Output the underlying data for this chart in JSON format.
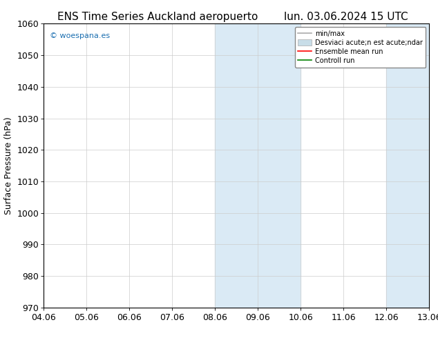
{
  "title_left": "ENS Time Series Auckland aeropuerto",
  "title_right": "lun. 03.06.2024 15 UTC",
  "xlabel_ticks": [
    "04.06",
    "05.06",
    "06.06",
    "07.06",
    "08.06",
    "09.06",
    "10.06",
    "11.06",
    "12.06",
    "13.06"
  ],
  "ylabel": "Surface Pressure (hPa)",
  "ylim": [
    970,
    1060
  ],
  "yticks": [
    970,
    980,
    990,
    1000,
    1010,
    1020,
    1030,
    1040,
    1050,
    1060
  ],
  "watermark": "© woespana.es",
  "watermark_color": "#1a6eb0",
  "shaded_regions": [
    {
      "xstart_idx": 4,
      "xend_idx": 6
    },
    {
      "xstart_idx": 8,
      "xend_idx": 9
    }
  ],
  "shade_color": "#daeaf5",
  "background_color": "#ffffff",
  "grid_color": "#cccccc",
  "title_fontsize": 11,
  "axis_fontsize": 9,
  "legend_min_max_color": "#aaaaaa",
  "legend_band_color": "#c8dde8",
  "legend_band_edge_color": "#aaaaaa",
  "legend_ensemble_color": "red",
  "legend_control_color": "green"
}
